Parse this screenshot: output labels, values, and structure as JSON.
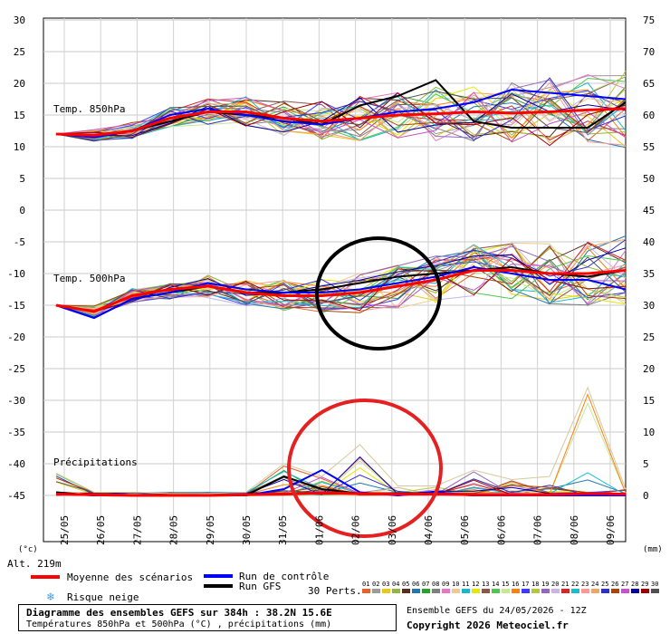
{
  "chart_data": {
    "type": "line",
    "dates": [
      "25/05",
      "26/05",
      "27/05",
      "28/05",
      "29/05",
      "30/05",
      "31/05",
      "01/06",
      "02/06",
      "03/06",
      "04/06",
      "05/06",
      "06/06",
      "07/06",
      "08/06",
      "09/06"
    ],
    "left_axis_ticks": [
      "30",
      "25",
      "20",
      "15",
      "10",
      "5",
      "0",
      "-5",
      "-10",
      "-15",
      "-20",
      "-25",
      "-30",
      "-35",
      "-40",
      "-45"
    ],
    "right_axis_ticks": [
      "75",
      "70",
      "65",
      "60",
      "55",
      "50",
      "45",
      "40",
      "35",
      "30",
      "25",
      "20",
      "15",
      "10",
      "5",
      "0"
    ],
    "left_unit": "(°c)",
    "right_unit": "(mm)",
    "altitude": "Alt. 219m",
    "labels": {
      "t850": "Temp. 850hPa",
      "t500": "Temp. 500hPa",
      "precip": "Précipitations"
    },
    "t850": {
      "mean": [
        12,
        11.8,
        12.5,
        14.5,
        15.5,
        15.5,
        14.5,
        14,
        14.5,
        15,
        15.2,
        15.5,
        15.3,
        15.5,
        15.8,
        16
      ],
      "control": [
        12,
        11.5,
        12.5,
        15,
        16,
        15,
        14,
        13.5,
        14.5,
        15.5,
        16,
        17,
        19,
        18.5,
        18,
        17.5
      ],
      "gfs": [
        12,
        11.5,
        12.5,
        14,
        15.5,
        15,
        14.5,
        13.5,
        16.5,
        18,
        20.5,
        14,
        13,
        13,
        13,
        17
      ]
    },
    "t500": {
      "mean": [
        -15,
        -16,
        -13.5,
        -12.5,
        -12,
        -13,
        -13.5,
        -13.5,
        -13,
        -12,
        -11,
        -9.5,
        -9.5,
        -10,
        -10,
        -9.5
      ],
      "control": [
        -15,
        -17,
        -14,
        -13,
        -11.5,
        -12.5,
        -13,
        -13,
        -12.5,
        -11.5,
        -10.5,
        -9,
        -10,
        -11,
        -11,
        -12.5
      ],
      "gfs": [
        -15,
        -17,
        -14,
        -13,
        -12,
        -13,
        -13,
        -12.5,
        -11.5,
        -10.5,
        -10,
        -9.5,
        -9,
        -10,
        -10.5,
        -9.5
      ]
    },
    "precip_mm": {
      "mean": [
        0.2,
        0.1,
        0,
        0,
        0,
        0.1,
        0.2,
        0.4,
        0.3,
        0.2,
        0.2,
        0.1,
        0.1,
        0.1,
        0.3,
        0.2
      ],
      "control": [
        0.3,
        0,
        0,
        0,
        0,
        0,
        1,
        4,
        0.5,
        0,
        0.5,
        0,
        0,
        0,
        0,
        0
      ],
      "gfs": [
        0.5,
        0,
        0,
        0,
        0,
        0,
        3,
        1,
        0.3,
        0.3,
        0.3,
        0,
        0,
        0,
        0,
        0
      ],
      "max_perturbation": [
        3.5,
        0.5,
        0.5,
        0.3,
        0.3,
        0.5,
        5,
        3,
        8,
        1.5,
        1.5,
        4,
        2.5,
        3,
        17,
        1
      ]
    },
    "legend": {
      "mean": "Moyenne des scénarios",
      "control": "Run de contrôle",
      "gfs": "Run GFS",
      "snow": "Risque neige",
      "perts": "30 Perts."
    },
    "perturbation_numbers": [
      "01",
      "02",
      "03",
      "04",
      "05",
      "06",
      "07",
      "08",
      "09",
      "10",
      "11",
      "12",
      "13",
      "14",
      "15",
      "16",
      "17",
      "18",
      "19",
      "20",
      "21",
      "22",
      "23",
      "24",
      "25",
      "26",
      "27",
      "28",
      "29",
      "30"
    ],
    "colors": {
      "mean": "#ff0000",
      "control": "#0000ff",
      "gfs": "#000000",
      "perts": [
        "#e3642b",
        "#9b9b9b",
        "#e6c81e",
        "#8fb83c",
        "#5a2d1e",
        "#1f77b4",
        "#2ca02c",
        "#7f7f7f",
        "#e377c2",
        "#f0c890",
        "#1fb4c8",
        "#e6e600",
        "#8c564b",
        "#4cc84c",
        "#c8e696",
        "#ff7f0e",
        "#3c3cff",
        "#b4c83c",
        "#9467bd",
        "#c8b4e6",
        "#d62728",
        "#17becf",
        "#ff9896",
        "#f4a460",
        "#2f2fc8",
        "#aa4400",
        "#c850c8",
        "#0000a0",
        "#9b0000",
        "#505050"
      ]
    }
  },
  "footer": {
    "title": "Diagramme des ensembles GEFS sur 384h : 38.2N 15.6E",
    "subtitle": "Températures 850hPa et 500hPa (°C) , précipitations (mm)",
    "ensemble": "Ensemble GEFS du 24/05/2026 - 12Z",
    "copyright": "Copyright 2026 Meteociel.fr"
  }
}
